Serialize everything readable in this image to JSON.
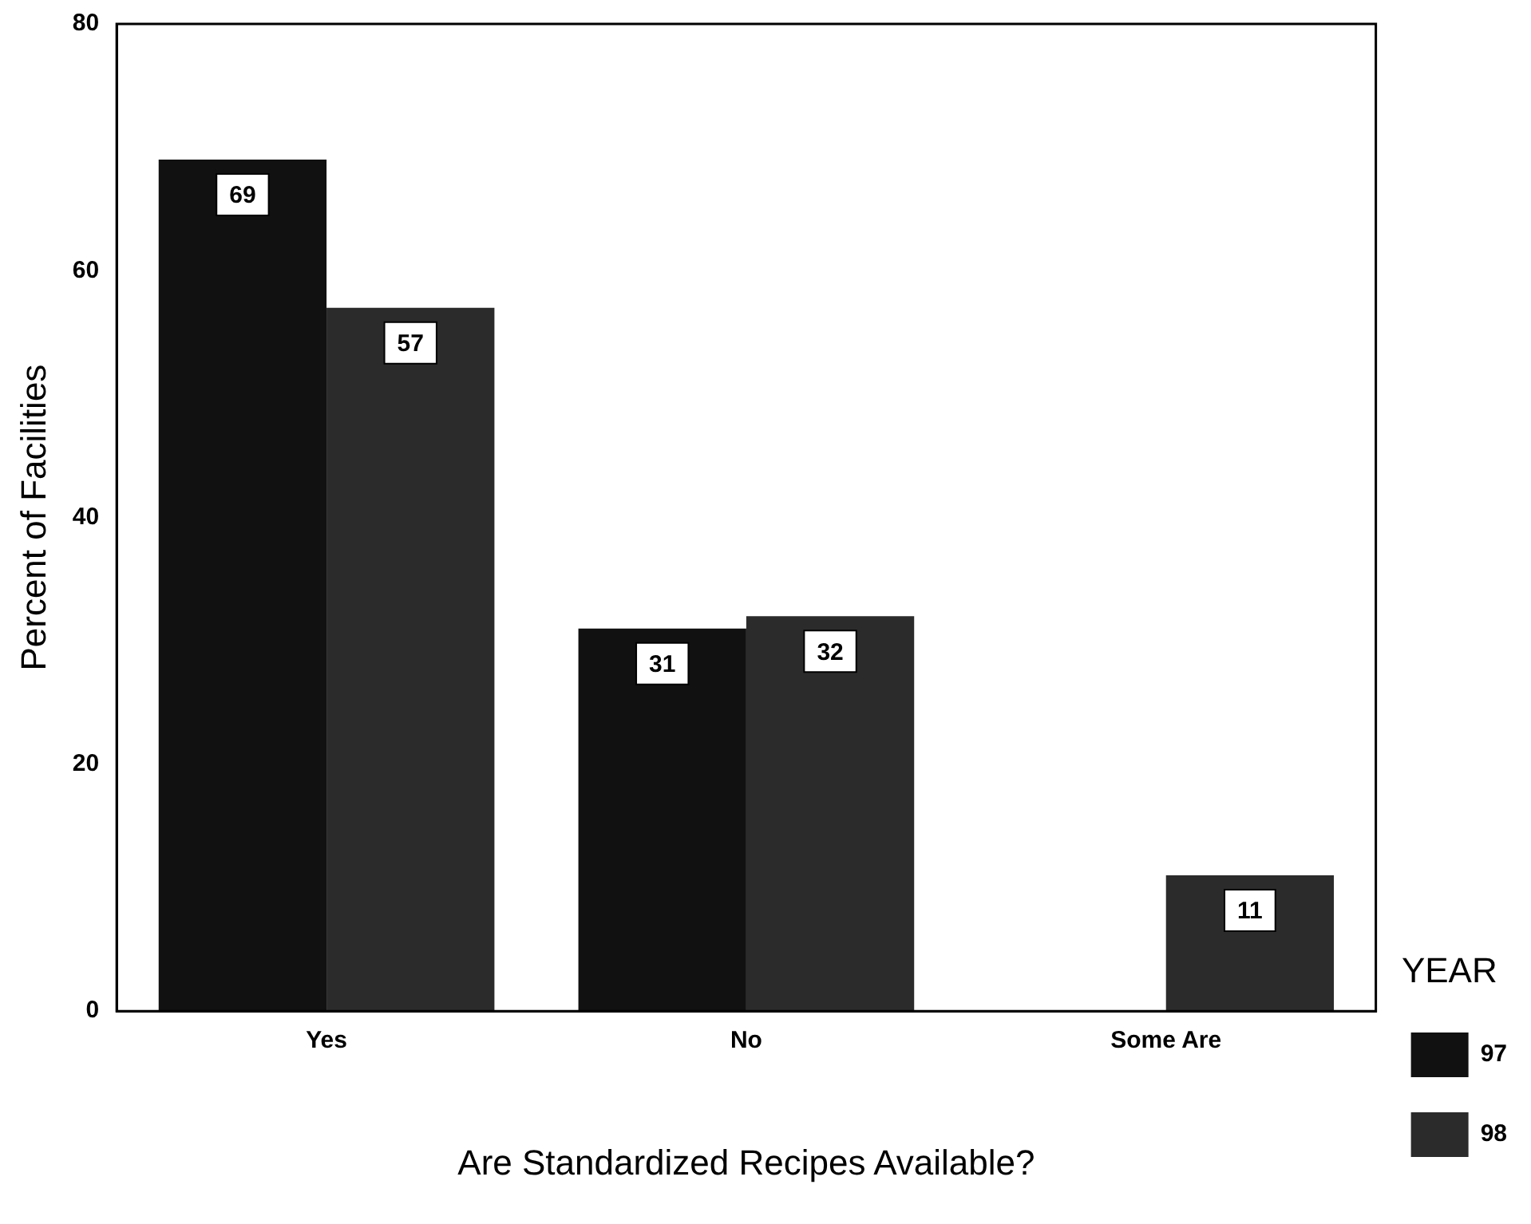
{
  "chart_data": {
    "type": "bar",
    "xlabel": "Are Standardized Recipes Available?",
    "ylabel": "Percent of Facilities",
    "legend_title": "YEAR",
    "categories": [
      "Yes",
      "No",
      "Some Are"
    ],
    "series": [
      {
        "name": "97",
        "color": "#111111",
        "values": [
          69,
          31,
          null
        ]
      },
      {
        "name": "98",
        "color": "#2b2b2b",
        "values": [
          57,
          32,
          11
        ]
      }
    ],
    "ylim": [
      0,
      80
    ],
    "yticks": [
      0,
      20,
      40,
      60,
      80
    ],
    "grid": false,
    "legend": "bottom right",
    "data_labels": true
  }
}
